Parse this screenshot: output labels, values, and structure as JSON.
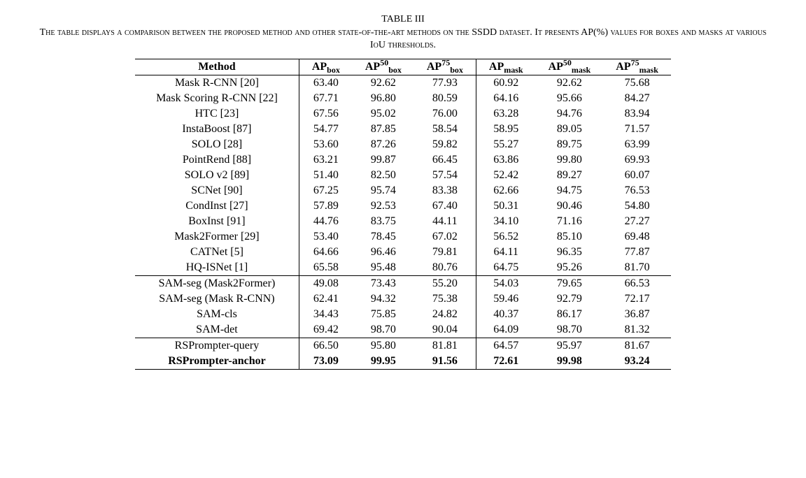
{
  "title": "TABLE III",
  "caption": "The table displays a comparison between the proposed method and other state-of-the-art methods on the SSDD dataset. It presents AP(%) values for boxes and masks at various IoU thresholds.",
  "columns": {
    "method": "Method",
    "ap_box": {
      "base": "AP",
      "sub": "box"
    },
    "ap50_box": {
      "base": "AP",
      "sup": "50",
      "sub": "box"
    },
    "ap75_box": {
      "base": "AP",
      "sup": "75",
      "sub": "box"
    },
    "ap_mask": {
      "base": "AP",
      "sub": "mask"
    },
    "ap50_mask": {
      "base": "AP",
      "sup": "50",
      "sub": "mask"
    },
    "ap75_mask": {
      "base": "AP",
      "sup": "75",
      "sub": "mask"
    }
  },
  "groups": [
    {
      "rows": [
        {
          "m": "Mask R-CNN [20]",
          "v": [
            "63.40",
            "92.62",
            "77.93",
            "60.92",
            "92.62",
            "75.68"
          ]
        },
        {
          "m": "Mask Scoring R-CNN [22]",
          "v": [
            "67.71",
            "96.80",
            "80.59",
            "64.16",
            "95.66",
            "84.27"
          ]
        },
        {
          "m": "HTC [23]",
          "v": [
            "67.56",
            "95.02",
            "76.00",
            "63.28",
            "94.76",
            "83.94"
          ]
        },
        {
          "m": "InstaBoost [87]",
          "v": [
            "54.77",
            "87.85",
            "58.54",
            "58.95",
            "89.05",
            "71.57"
          ]
        },
        {
          "m": "SOLO [28]",
          "v": [
            "53.60",
            "87.26",
            "59.82",
            "55.27",
            "89.75",
            "63.99"
          ]
        },
        {
          "m": "PointRend [88]",
          "v": [
            "63.21",
            "99.87",
            "66.45",
            "63.86",
            "99.80",
            "69.93"
          ]
        },
        {
          "m": "SOLO v2 [89]",
          "v": [
            "51.40",
            "82.50",
            "57.54",
            "52.42",
            "89.27",
            "60.07"
          ]
        },
        {
          "m": "SCNet [90]",
          "v": [
            "67.25",
            "95.74",
            "83.38",
            "62.66",
            "94.75",
            "76.53"
          ]
        },
        {
          "m": "CondInst [27]",
          "v": [
            "57.89",
            "92.53",
            "67.40",
            "50.31",
            "90.46",
            "54.80"
          ]
        },
        {
          "m": "BoxInst [91]",
          "v": [
            "44.76",
            "83.75",
            "44.11",
            "34.10",
            "71.16",
            "27.27"
          ]
        },
        {
          "m": "Mask2Former [29]",
          "v": [
            "53.40",
            "78.45",
            "67.02",
            "56.52",
            "85.10",
            "69.48"
          ]
        },
        {
          "m": "CATNet [5]",
          "v": [
            "64.66",
            "96.46",
            "79.81",
            "64.11",
            "96.35",
            "77.87"
          ]
        },
        {
          "m": "HQ-ISNet [1]",
          "v": [
            "65.58",
            "95.48",
            "80.76",
            "64.75",
            "95.26",
            "81.70"
          ]
        }
      ]
    },
    {
      "rows": [
        {
          "m": "SAM-seg (Mask2Former)",
          "v": [
            "49.08",
            "73.43",
            "55.20",
            "54.03",
            "79.65",
            "66.53"
          ]
        },
        {
          "m": "SAM-seg (Mask R-CNN)",
          "v": [
            "62.41",
            "94.32",
            "75.38",
            "59.46",
            "92.79",
            "72.17"
          ]
        },
        {
          "m": "SAM-cls",
          "v": [
            "34.43",
            "75.85",
            "24.82",
            "40.37",
            "86.17",
            "36.87"
          ]
        },
        {
          "m": "SAM-det",
          "v": [
            "69.42",
            "98.70",
            "90.04",
            "64.09",
            "98.70",
            "81.32"
          ]
        }
      ]
    },
    {
      "rows": [
        {
          "m": "RSPrompter-query",
          "v": [
            "66.50",
            "95.80",
            "81.81",
            "64.57",
            "95.97",
            "81.67"
          ]
        },
        {
          "m": "RSPrompter-anchor",
          "v": [
            "73.09",
            "99.95",
            "91.56",
            "72.61",
            "99.98",
            "93.24"
          ],
          "bold": true
        }
      ]
    }
  ]
}
